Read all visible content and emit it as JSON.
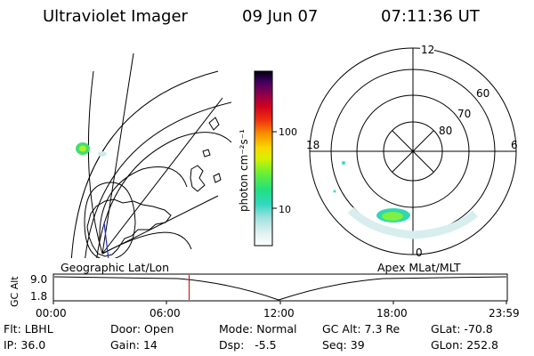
{
  "header": {
    "title": "Ultraviolet Imager",
    "date": "09 Jun 07",
    "time": "07:11:36 UT"
  },
  "colorbar": {
    "label": "photon cm⁻²s⁻¹",
    "ticks": [
      "100",
      "10"
    ],
    "colors": [
      "#ffffff",
      "#e6f4f4",
      "#cdeaea",
      "#9fe0e0",
      "#40d8c8",
      "#20e098",
      "#40f040",
      "#a8f020",
      "#f0f000",
      "#f8c800",
      "#f89000",
      "#f04800",
      "#e00010",
      "#b80030",
      "#800050",
      "#480060",
      "#000018"
    ]
  },
  "polar_plot": {
    "mlt_labels": [
      "12",
      "18",
      "6",
      "0"
    ],
    "lat_labels": [
      "60",
      "70",
      "80"
    ]
  },
  "panel_labels": {
    "left": "Geographic Lat/Lon",
    "right": "Apex MLat/MLT"
  },
  "altitude_strip": {
    "ylabel": "GC Alt",
    "ytick_top": "9.0",
    "ytick_bottom": "1.8",
    "time_ticks": [
      "00:00",
      "06:00",
      "12:00",
      "18:00",
      "23:59"
    ],
    "current_time_fraction": 0.299,
    "line_color": "#000000",
    "marker_color": "#e00000"
  },
  "info": {
    "row1": [
      {
        "label": "Flt:",
        "value": "LBHL"
      },
      {
        "label": "Door:",
        "value": "Open"
      },
      {
        "label": "Mode:",
        "value": "Normal"
      },
      {
        "label": "GC Alt:",
        "value": "7.3 Re"
      },
      {
        "label": "GLat:",
        "value": "-70.8"
      }
    ],
    "row2": [
      {
        "label": "IP:",
        "value": "36.0"
      },
      {
        "label": "Gain:",
        "value": "14"
      },
      {
        "label": "Dsp:",
        "value": "-5.5"
      },
      {
        "label": "Seq:",
        "value": "39"
      },
      {
        "label": "GLon:",
        "value": "252.8"
      }
    ]
  }
}
